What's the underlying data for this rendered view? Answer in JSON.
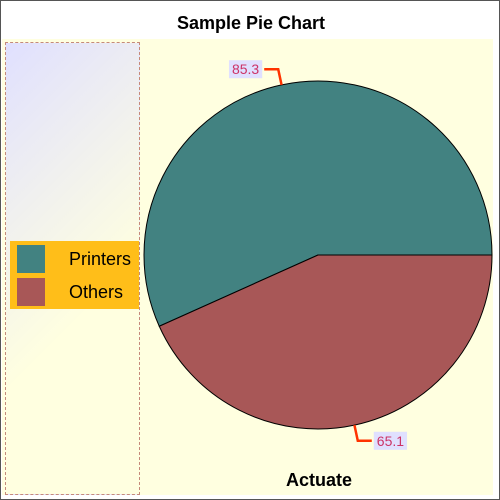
{
  "chart_data": {
    "type": "pie",
    "title": "Sample Pie Chart",
    "series_label": "Actuate",
    "categories": [
      "Printers",
      "Others"
    ],
    "values": [
      85.3,
      65.1
    ],
    "legend_position": "left",
    "colors": [
      "#428281",
      "#a85757"
    ],
    "label_color": "#cc3366",
    "label_bg": "#e0e0ff",
    "leader_color": "#ff3300"
  },
  "legend": {
    "items": [
      {
        "label": "Printers",
        "color": "#428281"
      },
      {
        "label": "Others",
        "color": "#a85757"
      }
    ]
  }
}
